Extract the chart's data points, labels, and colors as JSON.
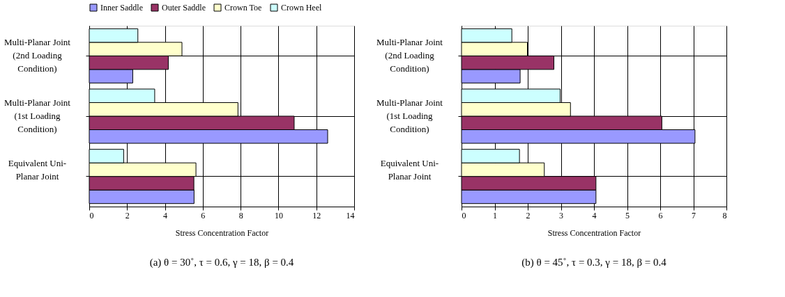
{
  "chart_data": [
    {
      "type": "bar",
      "orientation": "horizontal",
      "title": "(a) θ = 30˚, τ = 0.6, γ = 18, β = 0.4",
      "xlabel": "Stress Concentration Factor",
      "categories": [
        "Multi-Planar Joint (2nd Loading Condition)",
        "Multi-Planar Joint (1st Loading Condition)",
        "Equivalent Uni-Planar Joint"
      ],
      "series": [
        {
          "name": "Inner Saddle",
          "color": "#9999ff",
          "values": [
            2.3,
            12.6,
            5.54
          ]
        },
        {
          "name": "Outer Saddle",
          "color": "#993366",
          "values": [
            4.18,
            10.83,
            5.53
          ]
        },
        {
          "name": "Crown Toe",
          "color": "#ffffcc",
          "values": [
            4.9,
            7.86,
            5.64
          ]
        },
        {
          "name": "Crown Heel",
          "color": "#ccffff",
          "values": [
            2.57,
            3.46,
            1.82
          ]
        }
      ],
      "xlim": [
        0,
        14
      ],
      "xticks": [
        0,
        2,
        4,
        6,
        8,
        10,
        12,
        14
      ],
      "grid": true,
      "legend": "top"
    },
    {
      "type": "bar",
      "orientation": "horizontal",
      "title": "(b) θ = 45˚, τ = 0.3, γ = 18, β = 0.4",
      "xlabel": "Stress Concentration Factor",
      "categories": [
        "Multi-Planar Joint (2nd Loading Condition)",
        "Multi-Planar Joint (1st Loading Condition)",
        "Equivalent Uni-Planar Joint"
      ],
      "series": [
        {
          "name": "Inner Saddle",
          "color": "#9999ff",
          "values": [
            1.77,
            7.05,
            4.06
          ]
        },
        {
          "name": "Outer Saddle",
          "color": "#993366",
          "values": [
            2.79,
            6.05,
            4.06
          ]
        },
        {
          "name": "Crown Toe",
          "color": "#ffffcc",
          "values": [
            1.99,
            3.29,
            2.5
          ]
        },
        {
          "name": "Crown Heel",
          "color": "#ccffff",
          "values": [
            1.52,
            2.98,
            1.75
          ]
        }
      ],
      "xlim": [
        0,
        8
      ],
      "xticks": [
        0,
        1,
        2,
        3,
        4,
        5,
        6,
        7,
        8
      ],
      "grid": true,
      "legend": "top"
    }
  ]
}
